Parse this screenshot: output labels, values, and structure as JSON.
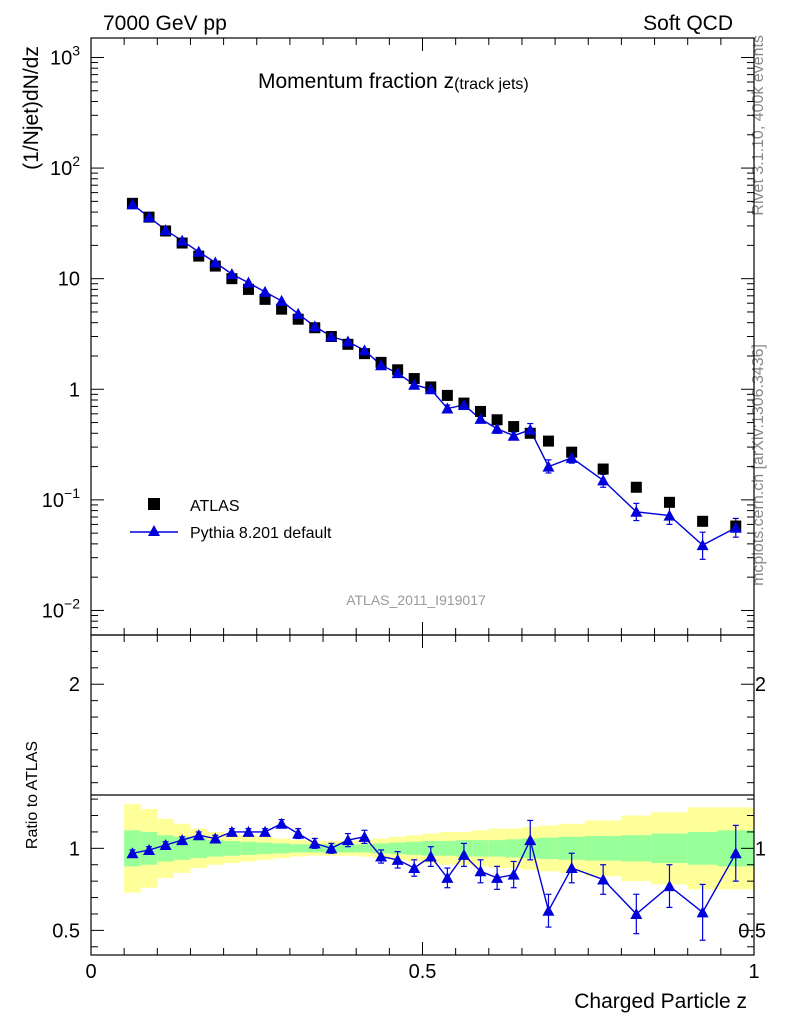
{
  "header": {
    "left": "7000 GeV pp",
    "right": "Soft QCD"
  },
  "side_labels": {
    "version": "Rivet 3.1.10,  400k events",
    "source": "mcplots.cern.ch [arXiv:1306.3436]"
  },
  "colors": {
    "data": "#000000",
    "mc": "#0000dd",
    "band_inner": "#99ff99",
    "band_outer": "#ffff99"
  },
  "chart_data": [
    {
      "type": "scatter",
      "title_main": "Momentum fraction z",
      "title_sub": "(track jets)",
      "ylabel": "(1/Njet)dN/dz",
      "analysis_label": "ATLAS_2011_I919017",
      "yscale": "log",
      "xlim": [
        0,
        1
      ],
      "ylim": [
        0.006,
        1500
      ],
      "y_ticks": [
        {
          "value": 1000,
          "base": "10",
          "exp": "3"
        },
        {
          "value": 100,
          "base": "10",
          "exp": "2"
        },
        {
          "value": 10,
          "base": "10",
          "exp": ""
        },
        {
          "value": 1,
          "base": "1",
          "exp": ""
        },
        {
          "value": 0.1,
          "base": "10",
          "exp": "−1"
        },
        {
          "value": 0.01,
          "base": "10",
          "exp": "−2"
        }
      ],
      "legend": {
        "position": "lower-left",
        "entries": [
          {
            "name": "ATLAS",
            "marker": "square"
          },
          {
            "name": "Pythia 8.201 default",
            "marker": "triangle-line"
          }
        ]
      },
      "x": [
        0.0625,
        0.0875,
        0.1125,
        0.1375,
        0.1625,
        0.1875,
        0.2125,
        0.2375,
        0.2625,
        0.2875,
        0.3125,
        0.3375,
        0.3625,
        0.3875,
        0.4125,
        0.4375,
        0.4625,
        0.4875,
        0.5125,
        0.5375,
        0.5625,
        0.5875,
        0.6125,
        0.6375,
        0.6625,
        0.69,
        0.725,
        0.7725,
        0.8225,
        0.8725,
        0.9225,
        0.9725
      ],
      "series": [
        {
          "name": "ATLAS",
          "values": [
            48,
            36,
            27,
            21,
            16,
            13,
            10,
            8,
            6.5,
            5.3,
            4.3,
            3.6,
            3.0,
            2.55,
            2.1,
            1.75,
            1.5,
            1.25,
            1.05,
            0.88,
            0.75,
            0.63,
            0.53,
            0.46,
            0.4,
            0.34,
            0.27,
            0.19,
            0.13,
            0.095,
            0.064,
            0.058
          ]
        },
        {
          "name": "Pythia 8.201 default",
          "values": [
            47,
            36,
            27.5,
            22,
            17.5,
            14,
            11,
            9.2,
            7.6,
            6.3,
            4.8,
            3.7,
            3.0,
            2.7,
            2.25,
            1.65,
            1.4,
            1.1,
            1.0,
            0.67,
            0.72,
            0.54,
            0.44,
            0.38,
            0.43,
            0.2,
            0.24,
            0.15,
            0.078,
            0.072,
            0.039,
            0.056
          ],
          "err_low": [
            0.5,
            0.4,
            0.3,
            0.2,
            0.2,
            0.2,
            0.1,
            0.1,
            0.1,
            0.1,
            0.1,
            0.05,
            0.05,
            0.05,
            0.05,
            0.05,
            0.05,
            0.05,
            0.05,
            0.05,
            0.05,
            0.04,
            0.04,
            0.03,
            0.05,
            0.025,
            0.025,
            0.02,
            0.013,
            0.012,
            0.01,
            0.01
          ],
          "err_high": [
            0.5,
            0.4,
            0.3,
            0.2,
            0.2,
            0.2,
            0.1,
            0.1,
            0.1,
            0.1,
            0.1,
            0.05,
            0.05,
            0.05,
            0.05,
            0.05,
            0.05,
            0.05,
            0.05,
            0.05,
            0.05,
            0.04,
            0.04,
            0.03,
            0.06,
            0.03,
            0.025,
            0.02,
            0.015,
            0.015,
            0.012,
            0.012
          ]
        }
      ]
    },
    {
      "type": "scatter",
      "ylabel": "Ratio to ATLAS",
      "xlabel": "Charged Particle z",
      "xlim": [
        0,
        1
      ],
      "ylim": [
        0.35,
        2.3
      ],
      "y_ticks": [
        0.5,
        1,
        2
      ],
      "y_tick_labels": [
        "0.5",
        "1",
        "2"
      ],
      "x_ticks": [
        0,
        0.5,
        1
      ],
      "x_tick_labels": [
        "0",
        "0.5",
        "1"
      ],
      "reference_line": 1,
      "bins": [
        0.05,
        0.075,
        0.1,
        0.125,
        0.15,
        0.175,
        0.2,
        0.225,
        0.25,
        0.275,
        0.3,
        0.325,
        0.35,
        0.375,
        0.4,
        0.425,
        0.45,
        0.475,
        0.5,
        0.525,
        0.55,
        0.575,
        0.6,
        0.625,
        0.65,
        0.675,
        0.705,
        0.745,
        0.8,
        0.845,
        0.9,
        0.945,
        1.0
      ],
      "band_inner": [
        0.11,
        0.1,
        0.08,
        0.07,
        0.06,
        0.05,
        0.045,
        0.04,
        0.035,
        0.03,
        0.025,
        0.025,
        0.025,
        0.025,
        0.025,
        0.03,
        0.035,
        0.04,
        0.045,
        0.045,
        0.05,
        0.05,
        0.05,
        0.055,
        0.06,
        0.065,
        0.07,
        0.075,
        0.08,
        0.09,
        0.1,
        0.11
      ],
      "band_outer": [
        0.27,
        0.24,
        0.18,
        0.15,
        0.12,
        0.1,
        0.09,
        0.08,
        0.07,
        0.06,
        0.05,
        0.045,
        0.045,
        0.045,
        0.05,
        0.06,
        0.07,
        0.08,
        0.09,
        0.1,
        0.1,
        0.11,
        0.12,
        0.12,
        0.13,
        0.14,
        0.15,
        0.17,
        0.2,
        0.22,
        0.25,
        0.25
      ],
      "series": [
        {
          "name": "Pythia 8.201 default",
          "x": [
            0.0625,
            0.0875,
            0.1125,
            0.1375,
            0.1625,
            0.1875,
            0.2125,
            0.2375,
            0.2625,
            0.2875,
            0.3125,
            0.3375,
            0.3625,
            0.3875,
            0.4125,
            0.4375,
            0.4625,
            0.4875,
            0.5125,
            0.5375,
            0.5625,
            0.5875,
            0.6125,
            0.6375,
            0.6625,
            0.69,
            0.725,
            0.7725,
            0.8225,
            0.8725,
            0.9225,
            0.9725
          ],
          "values": [
            0.97,
            0.99,
            1.02,
            1.05,
            1.08,
            1.06,
            1.1,
            1.1,
            1.1,
            1.15,
            1.09,
            1.03,
            1.0,
            1.05,
            1.07,
            0.95,
            0.93,
            0.88,
            0.95,
            0.82,
            0.96,
            0.86,
            0.82,
            0.84,
            1.05,
            0.62,
            0.88,
            0.81,
            0.6,
            0.77,
            0.61,
            0.97
          ],
          "err": [
            0.02,
            0.02,
            0.02,
            0.02,
            0.02,
            0.02,
            0.02,
            0.02,
            0.02,
            0.025,
            0.03,
            0.03,
            0.03,
            0.04,
            0.04,
            0.04,
            0.05,
            0.05,
            0.06,
            0.06,
            0.07,
            0.07,
            0.07,
            0.08,
            0.12,
            0.1,
            0.09,
            0.09,
            0.12,
            0.13,
            0.17,
            0.17
          ]
        }
      ]
    }
  ]
}
